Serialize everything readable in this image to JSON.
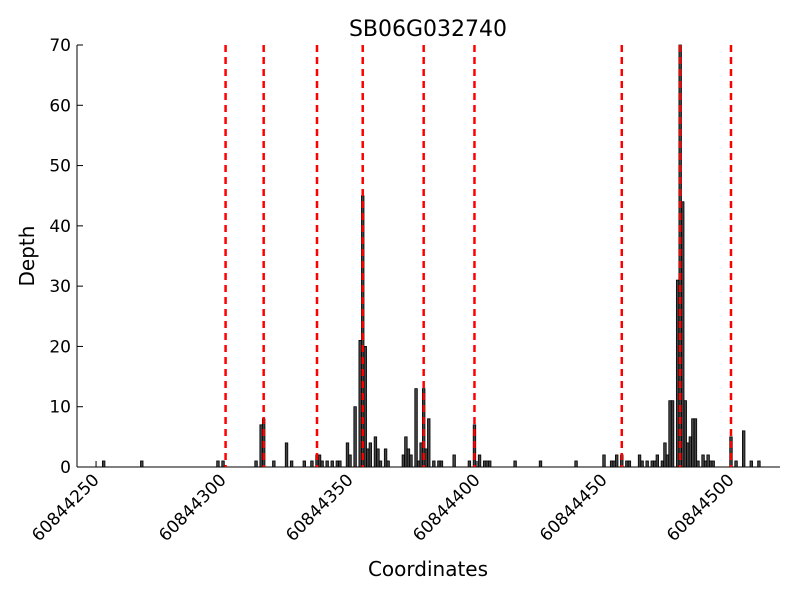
{
  "chart_data": {
    "type": "bar",
    "title": "SB06G032740",
    "xlabel": "Coordinates",
    "ylabel": "Depth",
    "x": [
      60844253,
      60844268,
      60844298,
      60844300,
      60844313,
      60844315,
      60844316,
      60844320,
      60844325,
      60844327,
      60844332,
      60844335,
      60844337,
      60844338,
      60844339,
      60844341,
      60844343,
      60844345,
      60844346,
      60844349,
      60844350,
      60844352,
      60844354,
      60844355,
      60844356,
      60844357,
      60844358,
      60844360,
      60844361,
      60844362,
      60844364,
      60844365,
      60844371,
      60844372,
      60844373,
      60844374,
      60844376,
      60844377,
      60844378,
      60844379,
      60844380,
      60844381,
      60844383,
      60844385,
      60844386,
      60844391,
      60844397,
      60844399,
      60844401,
      60844403,
      60844404,
      60844405,
      60844415,
      60844425,
      60844439,
      60844450,
      60844453,
      60844454,
      60844455,
      60844457,
      60844459,
      60844460,
      60844464,
      60844465,
      60844467,
      60844469,
      60844470,
      60844471,
      60844473,
      60844474,
      60844475,
      60844476,
      60844477,
      60844479,
      60844480,
      60844481,
      60844482,
      60844483,
      60844484,
      60844485,
      60844486,
      60844487,
      60844489,
      60844490,
      60844491,
      60844492,
      60844493,
      60844500,
      60844502,
      60844505,
      60844508,
      60844511
    ],
    "values": [
      1,
      1,
      1,
      1,
      1,
      7,
      8,
      1,
      4,
      1,
      1,
      1,
      2,
      2,
      1,
      1,
      1,
      1,
      1,
      4,
      2,
      10,
      21,
      45,
      20,
      3,
      4,
      5,
      3,
      1,
      3,
      1,
      2,
      5,
      3,
      2,
      13,
      1,
      4,
      13,
      3,
      8,
      1,
      1,
      1,
      2,
      1,
      7,
      2,
      1,
      1,
      1,
      1,
      1,
      1,
      2,
      1,
      1,
      2,
      2,
      1,
      1,
      2,
      1,
      1,
      1,
      1,
      2,
      1,
      4,
      2,
      11,
      11,
      31,
      70,
      44,
      11,
      4,
      5,
      8,
      8,
      1,
      2,
      1,
      2,
      1,
      1,
      5,
      1,
      6,
      1,
      1
    ],
    "color": "#444444",
    "vlines": [
      60844301,
      60844316,
      60844337,
      60844355,
      60844379,
      60844399,
      60844457,
      60844480,
      60844500
    ],
    "vline_color": "#ff0000",
    "xlim": [
      60844242.5,
      60844519.3
    ],
    "xticks": [
      60844250,
      60844300,
      60844350,
      60844400,
      60844450,
      60844500
    ],
    "ylim": [
      0,
      70
    ],
    "yticks": [
      0,
      10,
      20,
      30,
      40,
      50,
      60,
      70
    ]
  }
}
